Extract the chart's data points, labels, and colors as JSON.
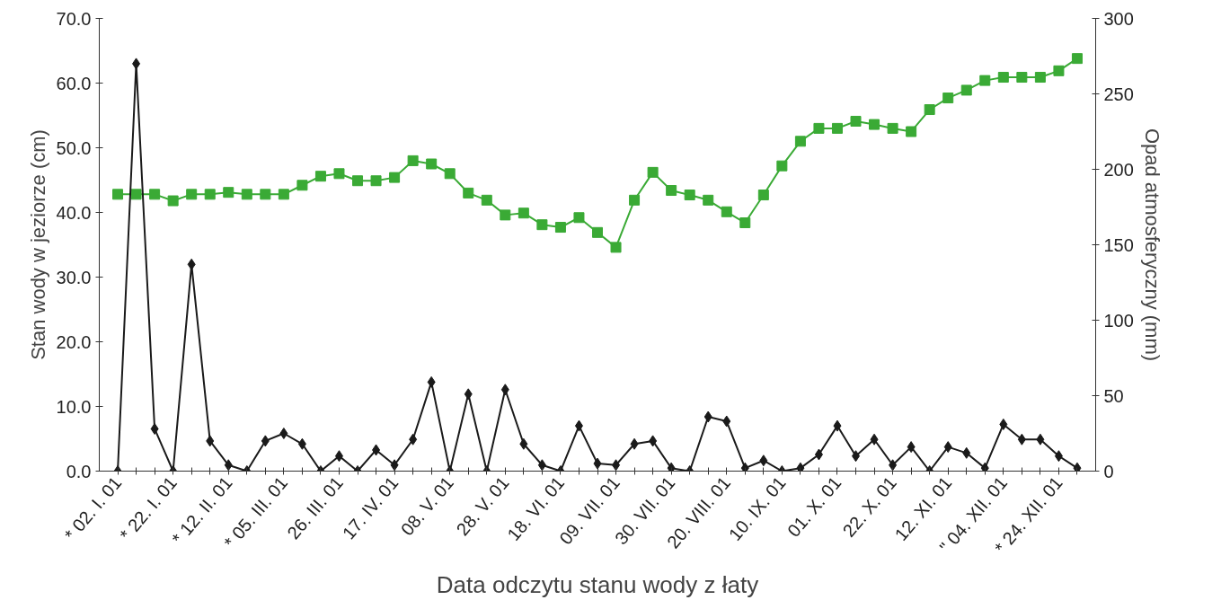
{
  "chart_data": {
    "type": "line",
    "xlabel": "Data odczytu stanu wody z łaty",
    "ylabel": "Stan wody w jeziorze (cm)",
    "y2label": "Opad atmosferyczny (mm)",
    "categories": [
      "* 02. I. 01",
      null,
      null,
      "* 22. I. 01",
      null,
      null,
      "* 12. II. 01",
      null,
      null,
      "* 05. III. 01",
      null,
      null,
      "26. III. 01",
      null,
      null,
      "17. IV. 01",
      null,
      null,
      "08. V. 01",
      null,
      null,
      "28. V. 01",
      null,
      null,
      "18. VI. 01",
      null,
      null,
      "09. VII. 01",
      null,
      null,
      "30. VII. 01",
      null,
      null,
      "20. VIII. 01",
      null,
      null,
      "10. IX. 01",
      null,
      null,
      "01. X. 01",
      null,
      null,
      "22. X. 01",
      null,
      null,
      "12. XI. 01",
      null,
      null,
      "\" 04. XII. 01",
      null,
      null,
      "* 24. XII. 01",
      null
    ],
    "series": [
      {
        "color": "#3aaa35",
        "marker": "square",
        "values": [
          42.8,
          42.8,
          42.8,
          41.8,
          42.8,
          42.8,
          43.1,
          42.8,
          42.8,
          42.8,
          44.2,
          45.6,
          46.0,
          44.9,
          44.9,
          45.4,
          48.0,
          47.5,
          46.0,
          43.0,
          41.9,
          39.6,
          39.9,
          38.1,
          37.7,
          39.2,
          36.9,
          34.6,
          41.9,
          46.2,
          43.4,
          42.7,
          41.9,
          40.1,
          38.4,
          42.7,
          47.2,
          51.0,
          53.0,
          53.0,
          54.1,
          53.6,
          53.0,
          52.5,
          55.9,
          57.7,
          58.9,
          60.4,
          60.9,
          60.9,
          60.9,
          61.9,
          63.8
        ]
      },
      {
        "color": "#1a1a1a",
        "marker": "diamond",
        "axis": "y2",
        "values": [
          0,
          270,
          28,
          0,
          137,
          20,
          4,
          0,
          20,
          25,
          18,
          0,
          10,
          0,
          14,
          4,
          21,
          59,
          0,
          51,
          0,
          54,
          18,
          4,
          0,
          30,
          5,
          4,
          18,
          20,
          2,
          0,
          36,
          33,
          2,
          7,
          0,
          2,
          11,
          30,
          10,
          21,
          4,
          16,
          0,
          16,
          12,
          2,
          31,
          21,
          21,
          10,
          2
        ]
      }
    ],
    "ylim": [
      0,
      70
    ],
    "yticks": [
      {
        "value": 0,
        "label": "0.0"
      },
      {
        "value": 10,
        "label": "10.0"
      },
      {
        "value": 20,
        "label": "20.0"
      },
      {
        "value": 30,
        "label": "30.0"
      },
      {
        "value": 40,
        "label": "40.0"
      },
      {
        "value": 50,
        "label": "50.0"
      },
      {
        "value": 60,
        "label": "60.0"
      },
      {
        "value": 70,
        "label": "70.0"
      }
    ],
    "y2lim": [
      0,
      300
    ],
    "y2ticks": [
      0,
      50,
      100,
      150,
      200,
      250,
      300
    ],
    "grid": false,
    "line_style": "solid"
  }
}
